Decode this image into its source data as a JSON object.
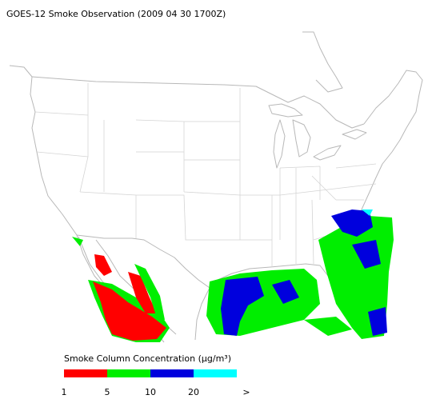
{
  "title": "GOES-12 Smoke Observation (2009 04 30  1700Z)",
  "legend": {
    "label": "Smoke Column Concentration (μg/m³)",
    "bins": [
      {
        "color": "#ff0000"
      },
      {
        "color": "#00ee00"
      },
      {
        "color": "#0000dd"
      },
      {
        "color": "#00ffff"
      }
    ],
    "tick_labels": [
      "1",
      "5",
      "10",
      "20",
      ">"
    ]
  }
}
